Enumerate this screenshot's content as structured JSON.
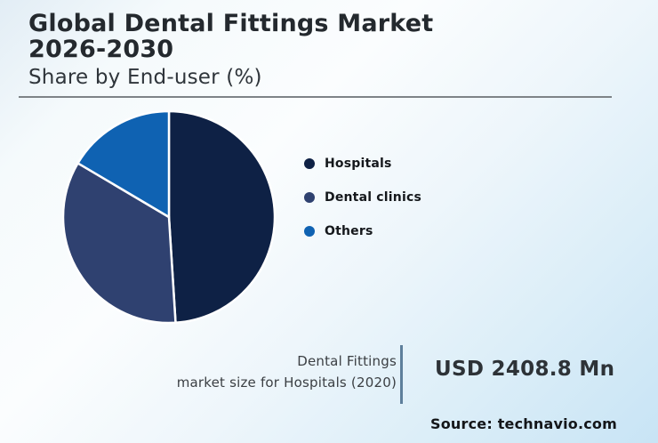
{
  "page": {
    "title_line1": "Global Dental Fittings Market",
    "title_line2": "2026-2030",
    "subtitle": "Share by End-user (%)"
  },
  "chart_data": {
    "type": "pie",
    "title": "Global Dental Fittings Market 2026-2030",
    "subtitle": "Share by End-user (%)",
    "legend_position": "right",
    "start_angle": "top",
    "direction": "clockwise",
    "values_unit": "%",
    "slices": [
      {
        "label": "Hospitals",
        "value": 49,
        "color": "#0e2145"
      },
      {
        "label": "Dental clinics",
        "value": 34.5,
        "color": "#2f4170"
      },
      {
        "label": "Others",
        "value": 16.5,
        "color": "#0f62b2"
      }
    ]
  },
  "stat": {
    "label_line1": "Dental Fittings",
    "label_line2": "market size for Hospitals (2020)",
    "value": "USD 2408.8 Mn"
  },
  "source": "Source: technavio.com",
  "colors": {
    "title_text": "#24292e",
    "header_divider": "#7e8387",
    "stat_divider": "#5e7f9b",
    "background_top_left": "#f5fafc",
    "background_bottom_right": "#c8e4f5"
  }
}
